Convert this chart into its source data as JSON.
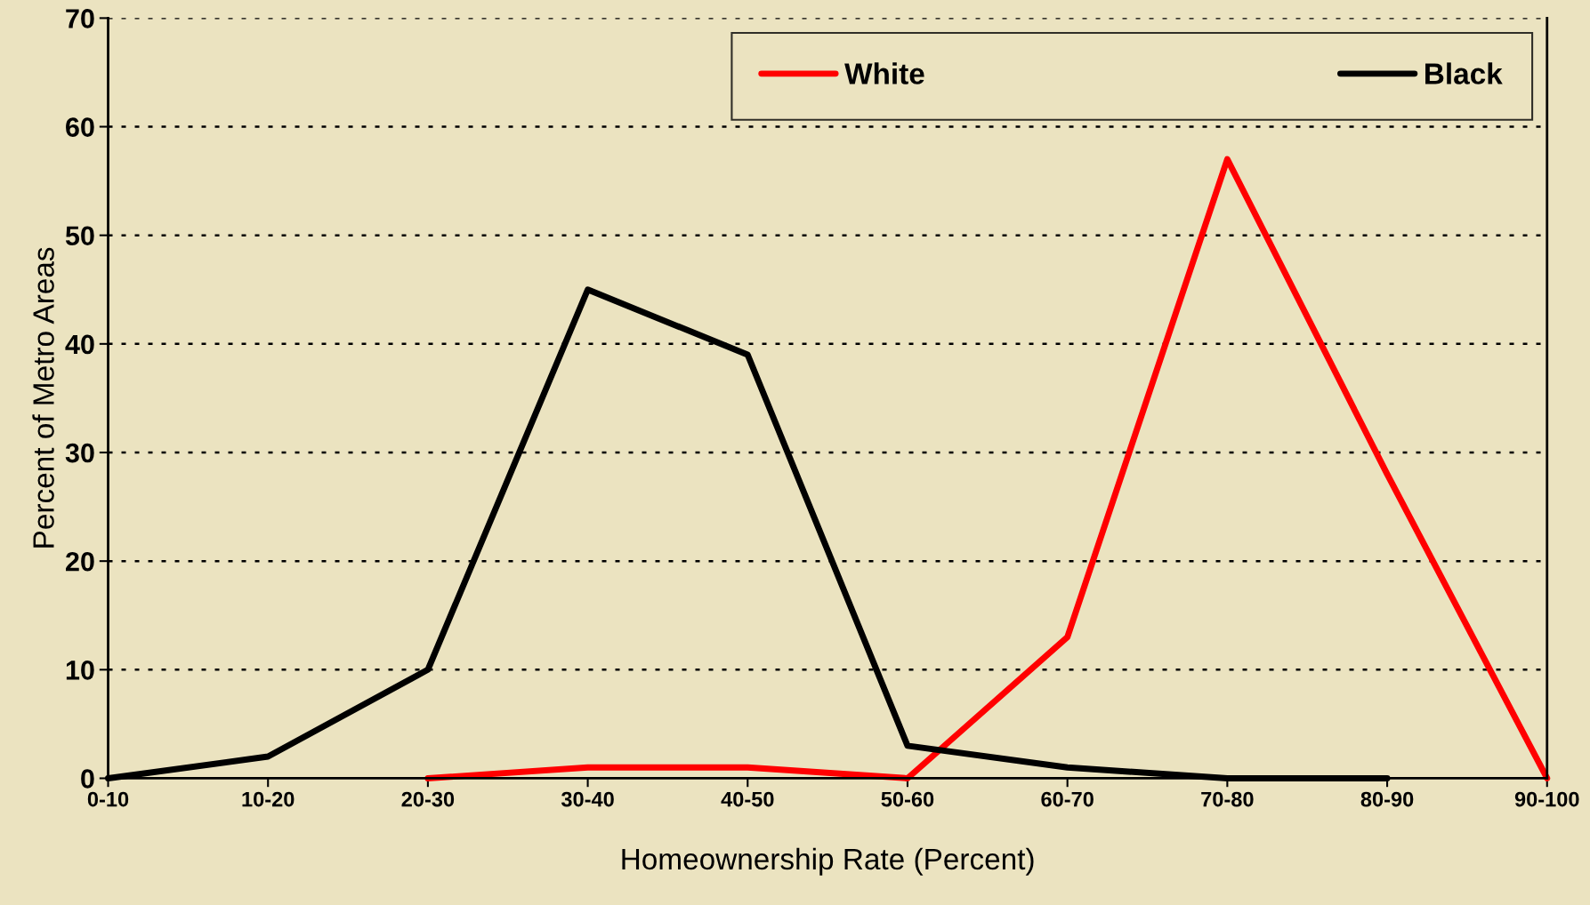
{
  "chart_data": {
    "type": "line",
    "xlabel": "Homeownership Rate (Percent)",
    "ylabel": "Percent of Metro Areas",
    "categories": [
      "0-10",
      "10-20",
      "20-30",
      "30-40",
      "40-50",
      "50-60",
      "60-70",
      "70-80",
      "80-90",
      "90-100"
    ],
    "series": [
      {
        "name": "White",
        "color": "#ff0000",
        "values": [
          null,
          null,
          0,
          1,
          1,
          0,
          13,
          57,
          28,
          0
        ]
      },
      {
        "name": "Black",
        "color": "#000000",
        "values": [
          0,
          2,
          10,
          45,
          39,
          3,
          1,
          0,
          0,
          null
        ]
      }
    ],
    "ylim": [
      0,
      70
    ],
    "yticks": [
      0,
      10,
      20,
      30,
      40,
      50,
      60,
      70
    ],
    "grid": "y",
    "legend": "top right",
    "marker": "none",
    "line_style": "solid"
  }
}
